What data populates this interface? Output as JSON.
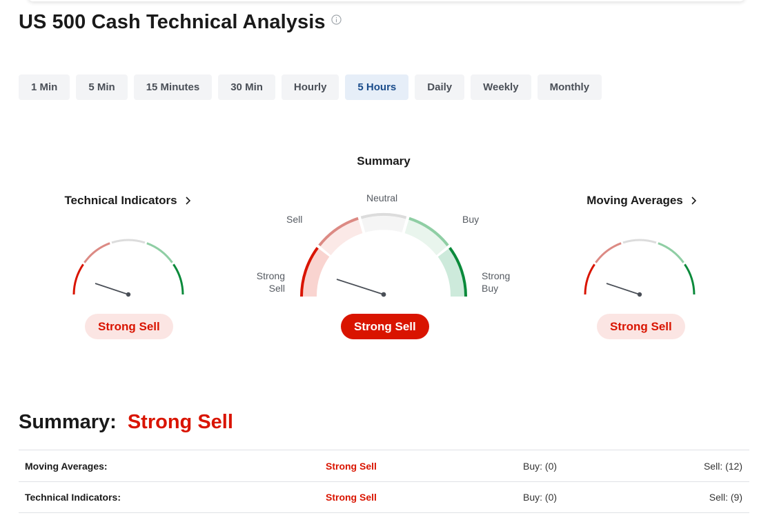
{
  "header": {
    "title": "US 500 Cash Technical Analysis"
  },
  "tabs": [
    {
      "label": "1 Min",
      "active": false
    },
    {
      "label": "5 Min",
      "active": false
    },
    {
      "label": "15 Minutes",
      "active": false
    },
    {
      "label": "30 Min",
      "active": false
    },
    {
      "label": "Hourly",
      "active": false
    },
    {
      "label": "5 Hours",
      "active": true
    },
    {
      "label": "Daily",
      "active": false
    },
    {
      "label": "Weekly",
      "active": false
    },
    {
      "label": "Monthly",
      "active": false
    }
  ],
  "gauges": {
    "technical": {
      "title": "Technical Indicators",
      "signal": "Strong Sell"
    },
    "summary": {
      "title": "Summary",
      "signal": "Strong Sell",
      "labels": {
        "strong_sell": "Strong\nSell",
        "sell": "Sell",
        "neutral": "Neutral",
        "buy": "Buy",
        "strong_buy": "Strong\nBuy"
      }
    },
    "moving": {
      "title": "Moving Averages",
      "signal": "Strong Sell"
    }
  },
  "summary": {
    "label": "Summary:",
    "signal": "Strong Sell",
    "rows": [
      {
        "name": "Moving Averages:",
        "signal": "Strong Sell",
        "buy": "Buy: (0)",
        "sell": "Sell: (12)"
      },
      {
        "name": "Technical Indicators:",
        "signal": "Strong Sell",
        "buy": "Buy: (0)",
        "sell": "Sell: (9)"
      }
    ]
  },
  "colors": {
    "strong_sell": "#d91400",
    "sell": "#dc8a84",
    "neutral": "#dcdcdc",
    "buy": "#8fcea4",
    "strong_buy": "#0b8a3b",
    "active_tab_bg": "#e6eef8",
    "active_tab_text": "#1a4c8b"
  }
}
